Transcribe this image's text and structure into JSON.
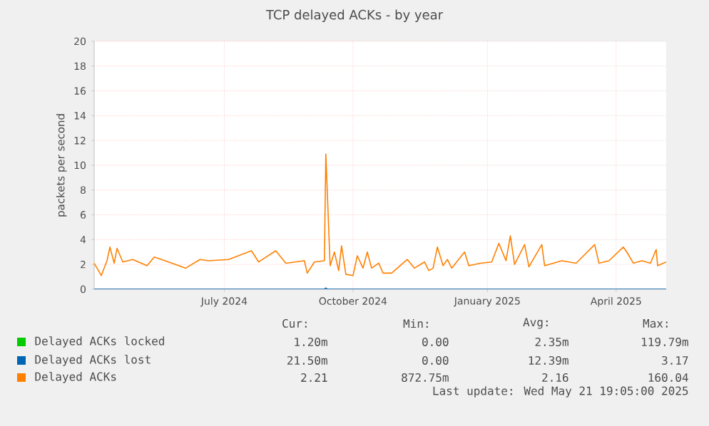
{
  "chart_data": {
    "type": "line",
    "title": "TCP delayed ACKs - by year",
    "ylabel": "packets per second",
    "xlim": [
      "2024-04-16",
      "2025-05-21"
    ],
    "xticks": [
      {
        "value": "2024-07-16",
        "label": "July 2024"
      },
      {
        "value": "2024-10-14",
        "label": "October 2024"
      },
      {
        "value": "2025-01-16",
        "label": "January 2025"
      },
      {
        "value": "2025-04-16",
        "label": "April 2025"
      }
    ],
    "ylim": [
      0,
      20
    ],
    "yticks": [
      0,
      2,
      4,
      6,
      8,
      10,
      12,
      14,
      16,
      18,
      20
    ],
    "grid": true,
    "legend": "bottom",
    "marker": "none",
    "line_style": "solid",
    "series": [
      {
        "name": "Delayed ACKs locked",
        "color": "#00cc00"
      },
      {
        "name": "Delayed ACKs lost",
        "color": "#0066b3",
        "x": [
          "2024-04-16",
          "2024-09-24",
          "2024-09-25",
          "2024-09-26",
          "2025-05-21"
        ],
        "values": [
          0,
          0,
          0.1,
          0,
          0
        ]
      },
      {
        "name": "Delayed ACKs",
        "color": "#ff8000",
        "x": [
          "2024-04-16",
          "2024-04-21",
          "2024-04-25",
          "2024-04-27",
          "2024-04-30",
          "2024-05-02",
          "2024-05-06",
          "2024-05-13",
          "2024-05-23",
          "2024-05-28",
          "2024-06-07",
          "2024-06-19",
          "2024-06-29",
          "2024-07-05",
          "2024-07-19",
          "2024-08-04",
          "2024-08-09",
          "2024-08-21",
          "2024-08-28",
          "2024-09-10",
          "2024-09-12",
          "2024-09-17",
          "2024-09-24",
          "2024-09-25",
          "2024-09-28",
          "2024-10-01",
          "2024-10-04",
          "2024-10-06",
          "2024-10-09",
          "2024-10-14",
          "2024-10-17",
          "2024-10-21",
          "2024-10-24",
          "2024-10-27",
          "2024-11-01",
          "2024-11-04",
          "2024-11-10",
          "2024-11-21",
          "2024-11-26",
          "2024-12-03",
          "2024-12-06",
          "2024-12-09",
          "2024-12-12",
          "2024-12-16",
          "2024-12-19",
          "2024-12-22",
          "2024-12-31",
          "2025-01-03",
          "2025-01-11",
          "2025-01-19",
          "2025-01-24",
          "2025-01-29",
          "2025-02-01",
          "2025-02-04",
          "2025-02-11",
          "2025-02-14",
          "2025-02-23",
          "2025-02-25",
          "2025-03-09",
          "2025-03-19",
          "2025-04-01",
          "2025-04-04",
          "2025-04-11",
          "2025-04-21",
          "2025-04-24",
          "2025-04-28",
          "2025-05-04",
          "2025-05-10",
          "2025-05-14",
          "2025-05-15",
          "2025-05-21"
        ],
        "values": [
          2.1,
          1.1,
          2.3,
          3.4,
          2.1,
          3.3,
          2.2,
          2.4,
          1.9,
          2.6,
          2.2,
          1.7,
          2.4,
          2.3,
          2.4,
          3.1,
          2.2,
          3.1,
          2.1,
          2.3,
          1.3,
          2.2,
          2.3,
          10.9,
          1.9,
          3.0,
          1.5,
          3.5,
          1.2,
          1.1,
          2.7,
          1.7,
          3.0,
          1.7,
          2.1,
          1.3,
          1.3,
          2.4,
          1.7,
          2.2,
          1.5,
          1.7,
          3.4,
          1.9,
          2.4,
          1.7,
          3.0,
          1.9,
          2.1,
          2.2,
          3.7,
          2.3,
          4.3,
          2.0,
          3.6,
          1.8,
          3.6,
          1.9,
          2.3,
          2.1,
          3.6,
          2.1,
          2.3,
          3.4,
          2.9,
          2.1,
          2.3,
          2.1,
          3.2,
          1.9,
          2.2
        ]
      }
    ],
    "annotations": [
      "Cur:",
      "Min:",
      "Avg:",
      "Max:",
      "1.20m",
      "0.00",
      "2.35m",
      "119.79m",
      "21.50m",
      "0.00",
      "12.39m",
      "3.17",
      "2.21",
      "872.75m",
      "2.16",
      "160.04",
      "Last update: Wed May 21 19:05:00 2025"
    ]
  }
}
